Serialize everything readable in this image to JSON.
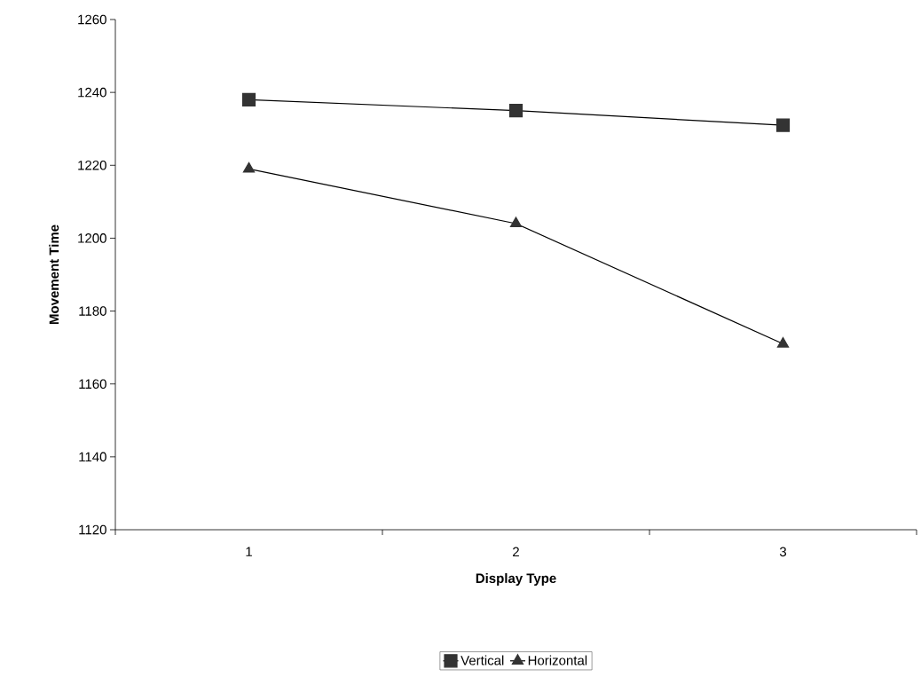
{
  "chart_data": {
    "type": "line",
    "xlabel": "Display Type",
    "ylabel": "Movement Time",
    "categories": [
      "1",
      "2",
      "3"
    ],
    "series": [
      {
        "name": "Vertical",
        "color": "#000000",
        "marker": "square",
        "values": [
          1238,
          1235,
          1231
        ]
      },
      {
        "name": "Horizontal",
        "color": "#000000",
        "marker": "triangle",
        "values": [
          1219,
          1204,
          1171
        ]
      }
    ],
    "ylim": [
      1120,
      1260
    ],
    "yticks": [
      1120,
      1140,
      1160,
      1180,
      1200,
      1220,
      1240,
      1260
    ],
    "grid": false,
    "legend": "bottom",
    "line_style": "solid"
  }
}
